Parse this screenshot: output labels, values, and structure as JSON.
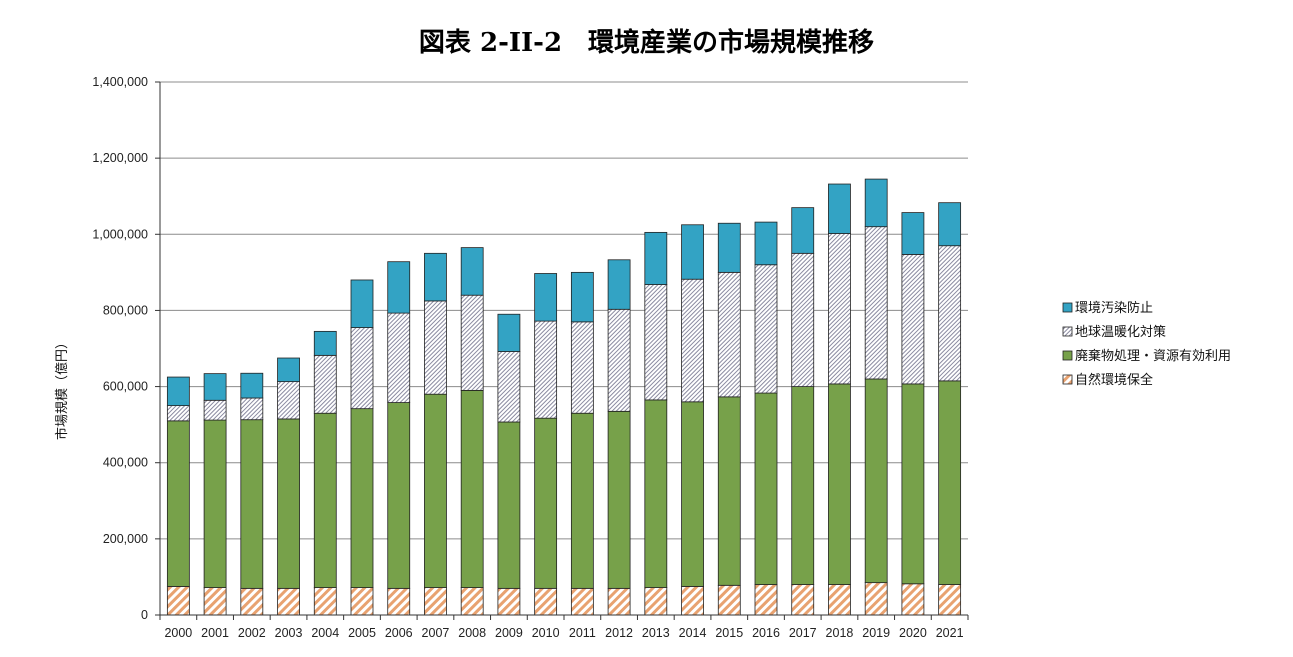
{
  "chart_data": {
    "type": "bar",
    "stacked": true,
    "title": "図表 2-II-2　環境産業の市場規模推移",
    "xlabel": "",
    "ylabel": "市場規模（億円）",
    "ylim": [
      0,
      1400000
    ],
    "yticks": [
      0,
      200000,
      400000,
      600000,
      800000,
      1000000,
      1200000,
      1400000
    ],
    "ytick_labels": [
      "0",
      "200,000",
      "400,000",
      "600,000",
      "800,000",
      "1,000,000",
      "1,200,000",
      "1,400,000"
    ],
    "grid": true,
    "legend_position": "right",
    "categories": [
      "2000",
      "2001",
      "2002",
      "2003",
      "2004",
      "2005",
      "2006",
      "2007",
      "2008",
      "2009",
      "2010",
      "2011",
      "2012",
      "2013",
      "2014",
      "2015",
      "2016",
      "2017",
      "2018",
      "2019",
      "2020",
      "2021"
    ],
    "series": [
      {
        "name": "自然環境保全",
        "color": "#e8a270",
        "pattern": "orange-diagonal-hatch",
        "values": [
          75000,
          72000,
          70000,
          70000,
          72000,
          72000,
          70000,
          72000,
          72000,
          70000,
          70000,
          70000,
          70000,
          72000,
          75000,
          78000,
          80000,
          80000,
          80000,
          85000,
          82000,
          80000
        ]
      },
      {
        "name": "廃棄物処理・資源有効利用",
        "color": "#77a14a",
        "values": [
          435000,
          440000,
          443000,
          445000,
          458000,
          470000,
          488000,
          508000,
          518000,
          437000,
          447000,
          460000,
          465000,
          493000,
          485000,
          495000,
          503000,
          520000,
          527000,
          535000,
          525000,
          535000
        ]
      },
      {
        "name": "地球温暖化対策",
        "color": "#ffffff",
        "pattern": "dense-diagonal-hatch",
        "values": [
          40000,
          52000,
          57000,
          98000,
          152000,
          213000,
          235000,
          245000,
          250000,
          185000,
          255000,
          240000,
          268000,
          303000,
          322000,
          327000,
          337000,
          350000,
          395000,
          400000,
          340000,
          355000
        ]
      },
      {
        "name": "環境汚染防止",
        "color": "#33a3c4",
        "values": [
          75000,
          70000,
          65000,
          62000,
          63000,
          125000,
          135000,
          125000,
          125000,
          98000,
          125000,
          130000,
          130000,
          137000,
          143000,
          129000,
          112000,
          120000,
          130000,
          125000,
          110000,
          113000
        ]
      }
    ]
  }
}
